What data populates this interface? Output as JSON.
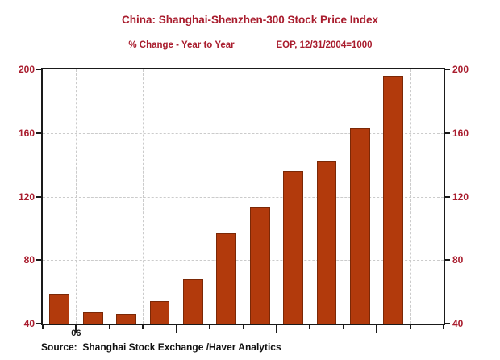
{
  "chart_data": {
    "type": "bar",
    "title": "China: Shanghai-Shenzhen-300 Stock Price Index",
    "subtitle": "% Change - Year to Year",
    "note": "EOP, 12/31/2004=1000",
    "source": "Source:  Shanghai Stock Exchange /Haver Analytics",
    "xlabel": "",
    "ylabel": "",
    "values": [
      59,
      47,
      46,
      54,
      68,
      97,
      113,
      136,
      142,
      163,
      196
    ],
    "num_slots": 12,
    "ylim": [
      40,
      200
    ],
    "yticks": [
      40,
      80,
      120,
      160,
      200
    ],
    "ytick_labels": [
      "40",
      "80",
      "120",
      "160",
      "200"
    ],
    "ygrid_values": [
      80,
      120,
      160
    ],
    "xgrid_boundaries": [
      1,
      3,
      5,
      7,
      9,
      11
    ],
    "x_long_tick_boundaries": [
      1,
      4,
      7,
      10
    ],
    "x_year_boundary": 1,
    "x_year_label": "06",
    "grid_style": "dashed",
    "legend_position": "none",
    "y_axis_labels_on_both_sides": true,
    "colors": {
      "bar_fill": "#b23a0c",
      "bar_border": "#7b2806",
      "title_text": "#a91d2e",
      "axis_label_text": "#a91d2e",
      "grid": "#cbcbcb",
      "frame": "#1a1a1a",
      "source_text": "#111111",
      "background": "#ffffff"
    }
  }
}
